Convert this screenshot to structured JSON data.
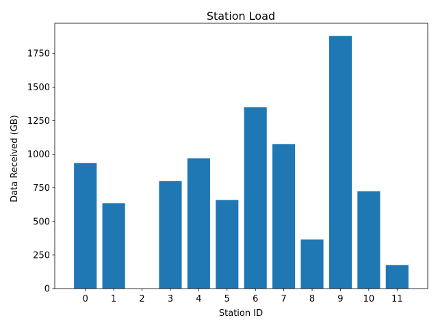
{
  "chart_data": {
    "type": "bar",
    "title": "Station Load",
    "xlabel": "Station ID",
    "ylabel": "Data Received (GB)",
    "categories": [
      "0",
      "1",
      "2",
      "3",
      "4",
      "5",
      "6",
      "7",
      "8",
      "9",
      "10",
      "11"
    ],
    "values": [
      935,
      635,
      0,
      800,
      970,
      660,
      1350,
      1075,
      365,
      1880,
      725,
      175
    ],
    "ylim": [
      0,
      1975
    ],
    "yticks": [
      0,
      250,
      500,
      750,
      1000,
      1250,
      1500,
      1750
    ],
    "ytick_labels": [
      "0",
      "250",
      "500",
      "750",
      "1000",
      "1250",
      "1500",
      "1750"
    ],
    "grid": false,
    "bar_color": "#1f77b4"
  }
}
